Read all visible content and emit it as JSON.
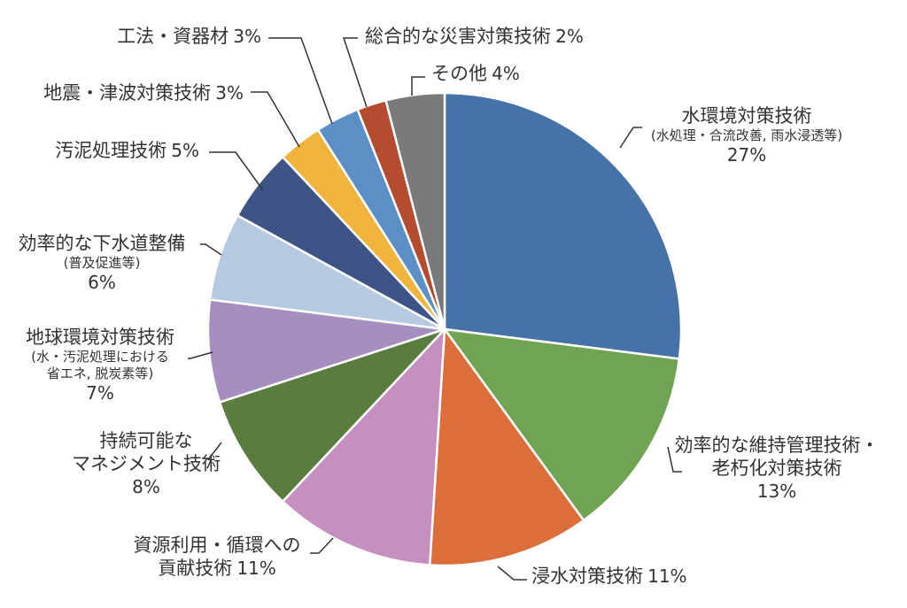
{
  "chart_data": {
    "type": "pie",
    "start": "12 o'clock",
    "direction": "clockwise",
    "slices": [
      {
        "name": "水環境対策技術",
        "sub": "(水処理・合流改善, 雨水浸透等)",
        "value": 27,
        "pct_label": "27%",
        "color": "#4572a7"
      },
      {
        "name": "効率的な維持管理技術・",
        "name2": "老朽化対策技術",
        "value": 13,
        "pct_label": "13%",
        "color": "#70a452"
      },
      {
        "name": "浸水対策技術",
        "value": 11,
        "pct_label": "11%",
        "color": "#dc6e3b"
      },
      {
        "name": "資源利用・循環への",
        "name2": "貢献技術",
        "value": 11,
        "pct_label": "11%",
        "color": "#c590bf"
      },
      {
        "name": "持続可能な",
        "name2": "マネジメント技術",
        "value": 8,
        "pct_label": "8%",
        "color": "#5b7c3f"
      },
      {
        "name": "地球環境対策技術",
        "sub": "(水・汚泥処理における",
        "sub2": "省エネ, 脱炭素等)",
        "value": 7,
        "pct_label": "7%",
        "color": "#a48fc0"
      },
      {
        "name": "効率的な下水道整備",
        "sub": "(普及促進等)",
        "value": 6,
        "pct_label": "6%",
        "color": "#b5c9e0"
      },
      {
        "name": "汚泥処理技術",
        "value": 5,
        "pct_label": "5%",
        "color": "#3f5486"
      },
      {
        "name": "地震・津波対策技術",
        "value": 3,
        "pct_label": "3%",
        "color": "#f0b33c"
      },
      {
        "name": "工法・資器材",
        "value": 3,
        "pct_label": "3%",
        "color": "#5b8fc6"
      },
      {
        "name": "総合的な災害対策技術",
        "value": 2,
        "pct_label": "2%",
        "color": "#b54b2f"
      },
      {
        "name": "その他",
        "value": 4,
        "pct_label": "4%",
        "color": "#7a7a7c"
      }
    ]
  }
}
